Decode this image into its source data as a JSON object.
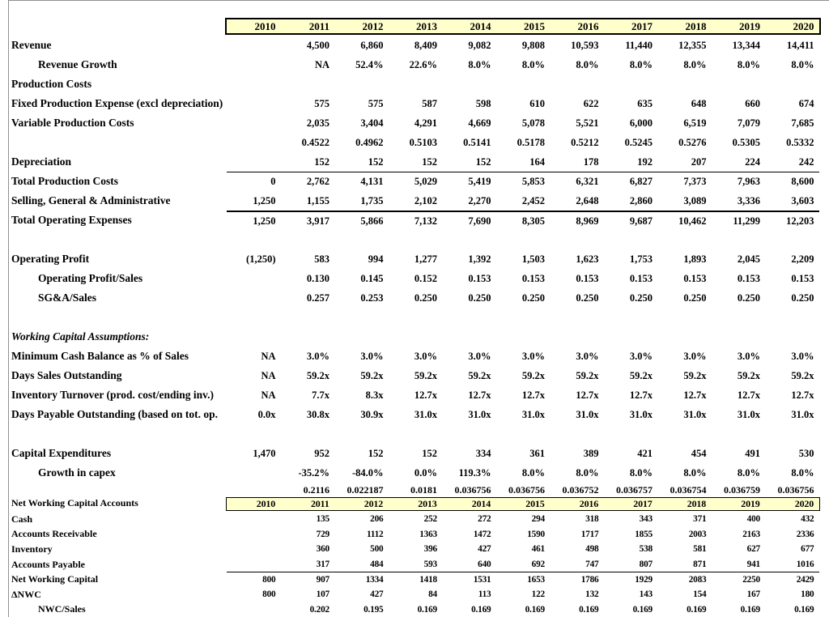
{
  "colors": {
    "header_fill": "#FFFFCC",
    "border": "#000000",
    "gridline": "#909090",
    "background": "#FFFFFF",
    "text": "#000000"
  },
  "years": [
    "2010",
    "2011",
    "2012",
    "2013",
    "2014",
    "2015",
    "2016",
    "2017",
    "2018",
    "2019",
    "2020"
  ],
  "top_section": {
    "rows": [
      {
        "label": "Revenue",
        "values": [
          "",
          "4,500",
          "6,860",
          "8,409",
          "9,082",
          "9,808",
          "10,593",
          "11,440",
          "12,355",
          "13,344",
          "14,411"
        ]
      },
      {
        "label": "Revenue Growth",
        "indent": true,
        "values": [
          "",
          "NA",
          "52.4%",
          "22.6%",
          "8.0%",
          "8.0%",
          "8.0%",
          "8.0%",
          "8.0%",
          "8.0%",
          "8.0%"
        ]
      },
      {
        "label": "Production Costs",
        "values": [
          "",
          "",
          "",
          "",
          "",
          "",
          "",
          "",
          "",
          "",
          ""
        ]
      },
      {
        "label": "Fixed Production Expense (excl depreciation)",
        "values": [
          "",
          "575",
          "575",
          "587",
          "598",
          "610",
          "622",
          "635",
          "648",
          "660",
          "674"
        ]
      },
      {
        "label": "Variable Production Costs",
        "values": [
          "",
          "2,035",
          "3,404",
          "4,291",
          "4,669",
          "5,078",
          "5,521",
          "6,000",
          "6,519",
          "7,079",
          "7,685"
        ]
      },
      {
        "label": "",
        "values": [
          "",
          "0.4522",
          "0.4962",
          "0.5103",
          "0.5141",
          "0.5178",
          "0.5212",
          "0.5245",
          "0.5276",
          "0.5305",
          "0.5332"
        ]
      },
      {
        "label": "Depreciation",
        "values": [
          "",
          "152",
          "152",
          "152",
          "152",
          "164",
          "178",
          "192",
          "207",
          "224",
          "242"
        ]
      },
      {
        "label": "Total Production Costs",
        "border_top": "thin",
        "values": [
          "0",
          "2,762",
          "4,131",
          "5,029",
          "5,419",
          "5,853",
          "6,321",
          "6,827",
          "7,373",
          "7,963",
          "8,600"
        ]
      },
      {
        "label": "Selling, General & Administrative",
        "values": [
          "1,250",
          "1,155",
          "1,735",
          "2,102",
          "2,270",
          "2,452",
          "2,648",
          "2,860",
          "3,089",
          "3,336",
          "3,603"
        ]
      },
      {
        "label": "Total Operating Expenses",
        "border_top": "thick",
        "values": [
          "1,250",
          "3,917",
          "5,866",
          "7,132",
          "7,690",
          "8,305",
          "8,969",
          "9,687",
          "10,462",
          "11,299",
          "12,203"
        ]
      },
      {
        "blank": true
      },
      {
        "label": "Operating Profit",
        "values": [
          "(1,250)",
          "583",
          "994",
          "1,277",
          "1,392",
          "1,503",
          "1,623",
          "1,753",
          "1,893",
          "2,045",
          "2,209"
        ]
      },
      {
        "label": "Operating Profit/Sales",
        "indent": true,
        "values": [
          "",
          "0.130",
          "0.145",
          "0.152",
          "0.153",
          "0.153",
          "0.153",
          "0.153",
          "0.153",
          "0.153",
          "0.153"
        ]
      },
      {
        "label": "SG&A/Sales",
        "indent": true,
        "values": [
          "",
          "0.257",
          "0.253",
          "0.250",
          "0.250",
          "0.250",
          "0.250",
          "0.250",
          "0.250",
          "0.250",
          "0.250"
        ]
      },
      {
        "blank": true
      },
      {
        "label": "Working Capital Assumptions:",
        "italic": true,
        "values": [
          "",
          "",
          "",
          "",
          "",
          "",
          "",
          "",
          "",
          "",
          ""
        ]
      },
      {
        "label": "Minimum Cash Balance as % of Sales",
        "values": [
          "NA",
          "3.0%",
          "3.0%",
          "3.0%",
          "3.0%",
          "3.0%",
          "3.0%",
          "3.0%",
          "3.0%",
          "3.0%",
          "3.0%"
        ]
      },
      {
        "label": "Days Sales Outstanding",
        "values": [
          "NA",
          "59.2x",
          "59.2x",
          "59.2x",
          "59.2x",
          "59.2x",
          "59.2x",
          "59.2x",
          "59.2x",
          "59.2x",
          "59.2x"
        ]
      },
      {
        "label": "Inventory Turnover (prod. cost/ending inv.)",
        "values": [
          "NA",
          "7.7x",
          "8.3x",
          "12.7x",
          "12.7x",
          "12.7x",
          "12.7x",
          "12.7x",
          "12.7x",
          "12.7x",
          "12.7x"
        ]
      },
      {
        "label": "Days Payable Outstanding (based on tot. op.",
        "values": [
          "0.0x",
          "30.8x",
          "30.9x",
          "31.0x",
          "31.0x",
          "31.0x",
          "31.0x",
          "31.0x",
          "31.0x",
          "31.0x",
          "31.0x"
        ]
      },
      {
        "blank": true
      },
      {
        "label": "Capital Expenditures",
        "values": [
          "1,470",
          "952",
          "152",
          "152",
          "334",
          "361",
          "389",
          "421",
          "454",
          "491",
          "530"
        ]
      },
      {
        "label": "Growth in capex",
        "indent": true,
        "values": [
          "",
          "-35.2%",
          "-84.0%",
          "0.0%",
          "119.3%",
          "8.0%",
          "8.0%",
          "8.0%",
          "8.0%",
          "8.0%",
          "8.0%"
        ]
      },
      {
        "label": "",
        "short": true,
        "values": [
          "",
          "0.2116",
          "0.022187",
          "0.0181",
          "0.036756",
          "0.036756",
          "0.036752",
          "0.036757",
          "0.036754",
          "0.036759",
          "0.036756"
        ]
      }
    ]
  },
  "bottom_section": {
    "header_label": "Net Working Capital Accounts",
    "rows": [
      {
        "label": "Cash",
        "values": [
          "",
          "135",
          "206",
          "252",
          "272",
          "294",
          "318",
          "343",
          "371",
          "400",
          "432"
        ]
      },
      {
        "label": "Accounts Receivable",
        "values": [
          "",
          "729",
          "1112",
          "1363",
          "1472",
          "1590",
          "1717",
          "1855",
          "2003",
          "2163",
          "2336"
        ]
      },
      {
        "label": "Inventory",
        "values": [
          "",
          "360",
          "500",
          "396",
          "427",
          "461",
          "498",
          "538",
          "581",
          "627",
          "677"
        ]
      },
      {
        "label": "Accounts Payable",
        "values": [
          "",
          "317",
          "484",
          "593",
          "640",
          "692",
          "747",
          "807",
          "871",
          "941",
          "1016"
        ]
      },
      {
        "label": "Net Working Capital",
        "border_top": "thin",
        "values": [
          "800",
          "907",
          "1334",
          "1418",
          "1531",
          "1653",
          "1786",
          "1929",
          "2083",
          "2250",
          "2429"
        ]
      },
      {
        "label": "ΔNWC",
        "values": [
          "800",
          "107",
          "427",
          "84",
          "113",
          "122",
          "132",
          "143",
          "154",
          "167",
          "180"
        ]
      },
      {
        "label": "NWC/Sales",
        "indent": true,
        "values": [
          "",
          "0.202",
          "0.195",
          "0.169",
          "0.169",
          "0.169",
          "0.169",
          "0.169",
          "0.169",
          "0.169",
          "0.169"
        ]
      }
    ]
  }
}
